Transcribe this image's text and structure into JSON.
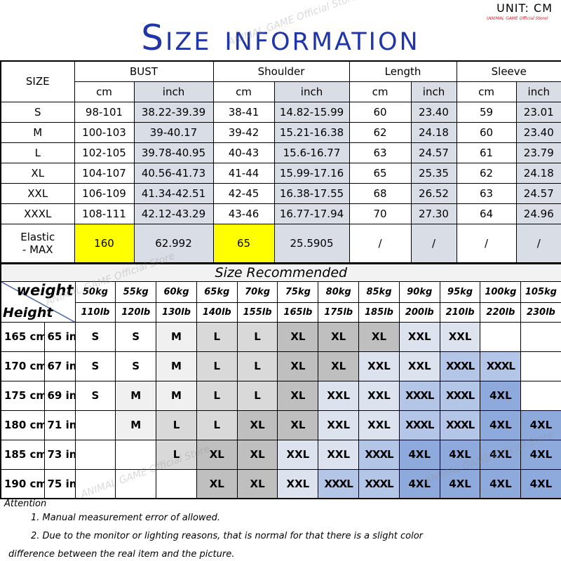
{
  "header": {
    "unit": "UNIT: CM",
    "store": "(ANIMAL GAME Official Store)",
    "title": "Size information"
  },
  "watermark": "ANIMAL GAME Official Store",
  "size_table": {
    "size_label": "SIZE",
    "groups": [
      "BUST",
      "Shoulder",
      "Length",
      "Sleeve"
    ],
    "units": [
      "cm",
      "inch",
      "cm",
      "inch",
      "cm",
      "inch",
      "cm",
      "inch"
    ],
    "rows": [
      [
        "S",
        "98-101",
        "38.22-39.39",
        "38-41",
        "14.82-15.99",
        "60",
        "23.40",
        "59",
        "23.01"
      ],
      [
        "M",
        "100-103",
        "39-40.17",
        "39-42",
        "15.21-16.38",
        "62",
        "24.18",
        "60",
        "23.40"
      ],
      [
        "L",
        "102-105",
        "39.78-40.95",
        "40-43",
        "15.6-16.77",
        "63",
        "24.57",
        "61",
        "23.79"
      ],
      [
        "XL",
        "104-107",
        "40.56-41.73",
        "41-44",
        "15.99-17.16",
        "65",
        "25.35",
        "62",
        "24.18"
      ],
      [
        "XXL",
        "106-109",
        "41.34-42.51",
        "42-45",
        "16.38-17.55",
        "68",
        "26.52",
        "63",
        "24.57"
      ],
      [
        "XXXL",
        "108-111",
        "42.12-43.29",
        "43-46",
        "16.77-17.94",
        "70",
        "27.30",
        "64",
        "24.96"
      ]
    ],
    "elastic": {
      "label1": "Elastic",
      "label2": "- MAX",
      "values": [
        "160",
        "62.992",
        "65",
        "25.5905",
        "/",
        "/",
        "/",
        "/"
      ]
    },
    "highlight_color": "#ffff00"
  },
  "recommend": {
    "title": "Size Recommended",
    "weight_label": "weight",
    "height_label": "Height",
    "kg": [
      "50kg",
      "55kg",
      "60kg",
      "65kg",
      "70kg",
      "75kg",
      "80kg",
      "85kg",
      "90kg",
      "95kg",
      "100kg",
      "105kg"
    ],
    "lb": [
      "110lb",
      "120lb",
      "130lb",
      "140lb",
      "155lb",
      "165lb",
      "175lb",
      "185lb",
      "200lb",
      "210lb",
      "220lb",
      "230lb"
    ],
    "rows": [
      {
        "cm": "165 cm",
        "in": "65 in",
        "sizes": [
          "S",
          "S",
          "M",
          "L",
          "L",
          "XL",
          "XL",
          "XL",
          "XXL",
          "XXL",
          "",
          ""
        ]
      },
      {
        "cm": "170 cm",
        "in": "67 in",
        "sizes": [
          "S",
          "S",
          "M",
          "L",
          "L",
          "XL",
          "XL",
          "XXL",
          "XXL",
          "XXXL",
          "XXXL",
          ""
        ]
      },
      {
        "cm": "175 cm",
        "in": "69 in",
        "sizes": [
          "S",
          "M",
          "M",
          "L",
          "L",
          "XL",
          "XXL",
          "XXL",
          "XXXL",
          "XXXL",
          "4XL",
          ""
        ]
      },
      {
        "cm": "180 cm",
        "in": "71 in",
        "sizes": [
          "",
          "M",
          "L",
          "L",
          "XL",
          "XL",
          "XXL",
          "XXL",
          "XXXL",
          "XXXL",
          "4XL",
          "4XL"
        ]
      },
      {
        "cm": "185 cm",
        "in": "73 in",
        "sizes": [
          "",
          "",
          "L",
          "XL",
          "XL",
          "XXL",
          "XXL",
          "XXXL",
          "4XL",
          "4XL",
          "4XL",
          "4XL"
        ]
      },
      {
        "cm": "190 cm",
        "in": "75 in",
        "sizes": [
          "",
          "",
          "",
          "XL",
          "XL",
          "XXL",
          "XXXL",
          "XXXL",
          "4XL",
          "4XL",
          "4XL",
          "4XL"
        ]
      }
    ],
    "colors": {
      "S": "#ffffff",
      "M": "#f0f0f0",
      "L": "#d9d9d9",
      "XL": "#bfbfbf",
      "XXL": "#dde3ee",
      "XXXL": "#b4c6e7",
      "4XL": "#8ea9db"
    }
  },
  "attention": {
    "title": "Attention",
    "notes": [
      "1. Manual measurement error of allowed.",
      "2.  Due to the monitor or lighting reasons, that is normal for that there is a slight color",
      "difference between the real item and the picture."
    ]
  }
}
